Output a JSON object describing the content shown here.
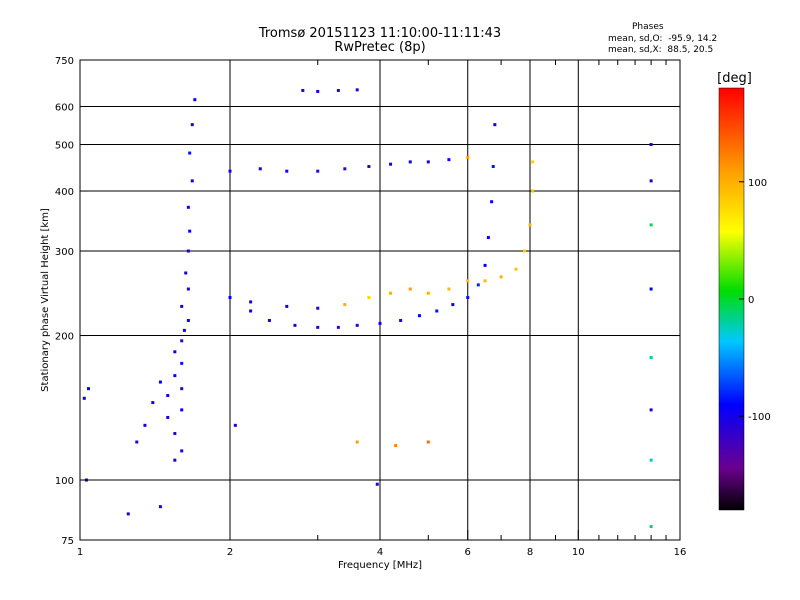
{
  "header": {
    "title_line1": "Tromsø 20151123 11:10:00-11:11:43",
    "title_line2": "RwPretec (8p)"
  },
  "phase_box": {
    "heading": "Phases",
    "line_o": "mean, sd,O:  -95.9, 14.2",
    "line_x": "mean, sd,X:  88.5, 20.5"
  },
  "chart_data": {
    "type": "scatter",
    "xlabel": "Frequency [MHz]",
    "ylabel": "Stationary phase Virtual Height [km]",
    "x_scale": "log",
    "y_scale": "log",
    "xlim": [
      1,
      16
    ],
    "ylim": [
      75,
      750
    ],
    "x_ticks": [
      1,
      2,
      4,
      6,
      8,
      10,
      16
    ],
    "y_ticks": [
      75,
      100,
      200,
      300,
      400,
      500,
      600,
      750
    ],
    "grid": true,
    "color_by": "phase",
    "colorbar": {
      "label": "[deg]",
      "ticks": [
        100,
        0,
        -100
      ],
      "range": [
        -180,
        180
      ]
    },
    "series": [
      {
        "trace": "E-region low-frequency trace",
        "points": [
          [
            1.55,
            110,
            -95
          ],
          [
            1.6,
            115,
            -100
          ],
          [
            1.55,
            125,
            -110
          ],
          [
            1.5,
            135,
            -95
          ],
          [
            1.6,
            140,
            -90
          ],
          [
            1.5,
            150,
            -100
          ],
          [
            1.6,
            155,
            -105
          ],
          [
            1.55,
            165,
            -95
          ],
          [
            1.6,
            175,
            -85
          ],
          [
            1.55,
            185,
            -100
          ],
          [
            1.6,
            195,
            -110
          ],
          [
            1.62,
            205,
            -95
          ],
          [
            1.65,
            215,
            -90
          ],
          [
            1.6,
            230,
            -100
          ],
          [
            1.65,
            250,
            -105
          ],
          [
            1.63,
            270,
            -95
          ],
          [
            1.65,
            300,
            -100
          ],
          [
            1.66,
            330,
            -90
          ],
          [
            1.65,
            370,
            -100
          ],
          [
            1.68,
            420,
            -95
          ],
          [
            1.66,
            480,
            -85
          ],
          [
            1.68,
            550,
            -100
          ],
          [
            1.7,
            620,
            -95
          ],
          [
            1.35,
            130,
            -100
          ],
          [
            1.3,
            120,
            -105
          ],
          [
            1.4,
            145,
            -95
          ],
          [
            1.45,
            160,
            -90
          ]
        ]
      },
      {
        "trace": "F-region O-mode lower trace",
        "points": [
          [
            2.0,
            240,
            -90
          ],
          [
            2.2,
            225,
            -95
          ],
          [
            2.4,
            215,
            -100
          ],
          [
            2.7,
            210,
            -105
          ],
          [
            3.0,
            208,
            -110
          ],
          [
            3.3,
            208,
            -115
          ],
          [
            3.6,
            210,
            -110
          ],
          [
            4.0,
            212,
            -100
          ],
          [
            4.4,
            215,
            -95
          ],
          [
            4.8,
            220,
            -90
          ],
          [
            5.2,
            225,
            -85
          ],
          [
            5.6,
            232,
            -90
          ],
          [
            6.0,
            240,
            -85
          ],
          [
            6.3,
            255,
            -80
          ],
          [
            6.5,
            280,
            -90
          ],
          [
            6.6,
            320,
            -95
          ],
          [
            6.7,
            380,
            -90
          ],
          [
            6.75,
            450,
            -85
          ],
          [
            6.8,
            550,
            -95
          ]
        ]
      },
      {
        "trace": "F-region X-mode trace",
        "points": [
          [
            2.2,
            235,
            -100
          ],
          [
            2.6,
            230,
            -95
          ],
          [
            3.0,
            228,
            -100
          ],
          [
            3.4,
            232,
            100
          ],
          [
            3.8,
            240,
            80
          ],
          [
            4.2,
            245,
            100
          ],
          [
            4.6,
            250,
            110
          ],
          [
            5.0,
            245,
            100
          ],
          [
            5.5,
            250,
            95
          ],
          [
            6.0,
            260,
            90
          ],
          [
            6.5,
            260,
            95
          ],
          [
            7.0,
            265,
            100
          ],
          [
            7.5,
            275,
            90
          ],
          [
            7.8,
            300,
            85
          ],
          [
            8.0,
            340,
            95
          ],
          [
            8.1,
            400,
            90
          ],
          [
            8.1,
            460,
            80
          ]
        ]
      },
      {
        "trace": "Multiple-hop echo near 450 km",
        "points": [
          [
            2.0,
            440,
            -100
          ],
          [
            2.3,
            445,
            -95
          ],
          [
            2.6,
            440,
            -100
          ],
          [
            3.0,
            440,
            -110
          ],
          [
            3.4,
            445,
            -115
          ],
          [
            3.8,
            450,
            -110
          ],
          [
            4.2,
            455,
            -100
          ],
          [
            4.6,
            460,
            -95
          ],
          [
            5.0,
            460,
            -100
          ],
          [
            5.5,
            465,
            -95
          ],
          [
            6.0,
            470,
            110
          ]
        ]
      },
      {
        "trace": "Echo near 650 km",
        "points": [
          [
            2.8,
            648,
            -100
          ],
          [
            3.0,
            645,
            -95
          ],
          [
            3.3,
            648,
            -110
          ],
          [
            3.6,
            650,
            -105
          ]
        ]
      },
      {
        "trace": "Interference near 14 MHz",
        "points": [
          [
            14.0,
            500,
            -100
          ],
          [
            14.0,
            420,
            -95
          ],
          [
            14.0,
            340,
            -10
          ],
          [
            14.0,
            250,
            -90
          ],
          [
            14.0,
            180,
            -20
          ],
          [
            14.0,
            140,
            -100
          ],
          [
            14.0,
            110,
            -30
          ],
          [
            14.0,
            80,
            -15
          ]
        ]
      },
      {
        "trace": "Isolated points",
        "points": [
          [
            1.03,
            100,
            -100
          ],
          [
            1.02,
            148,
            -95
          ],
          [
            1.04,
            155,
            -90
          ],
          [
            1.25,
            85,
            -100
          ],
          [
            1.45,
            88,
            -95
          ],
          [
            2.05,
            130,
            -100
          ],
          [
            3.6,
            120,
            110
          ],
          [
            4.3,
            118,
            120
          ],
          [
            5.0,
            120,
            130
          ],
          [
            3.95,
            98,
            -100
          ]
        ]
      }
    ]
  }
}
